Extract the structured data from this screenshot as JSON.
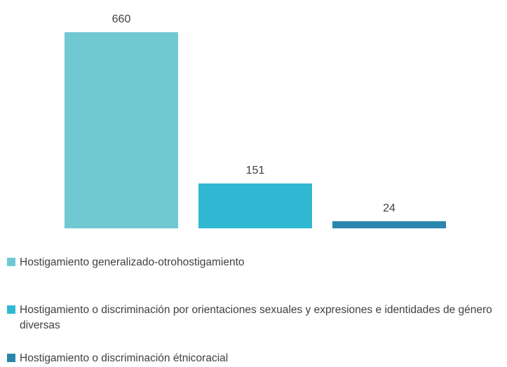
{
  "chart_data": {
    "type": "bar",
    "categories": [
      "Hostigamiento generalizado-otrohostigamiento",
      "Hostigamiento o discriminación por orientaciones sexuales y expresiones e identidades de género diversas",
      "Hostigamiento o discriminación étnicoracial"
    ],
    "values": [
      660,
      151,
      24
    ],
    "data_labels": [
      "660",
      "151",
      "24"
    ],
    "colors": [
      "#70c8d2",
      "#30b8d2",
      "#2b86ad"
    ],
    "ylim": [
      0,
      660
    ],
    "grid": false,
    "legend_position": "bottom",
    "title": "",
    "xlabel": "",
    "ylabel": ""
  },
  "legend": {
    "items": [
      {
        "label": "Hostigamiento generalizado-otrohostigamiento",
        "color": "#70c8d2"
      },
      {
        "label": "Hostigamiento o discriminación por orientaciones sexuales y expresiones e identidades de género diversas",
        "color": "#30b8d2"
      },
      {
        "label": "Hostigamiento o discriminación étnicoracial",
        "color": "#2b86ad"
      }
    ]
  }
}
